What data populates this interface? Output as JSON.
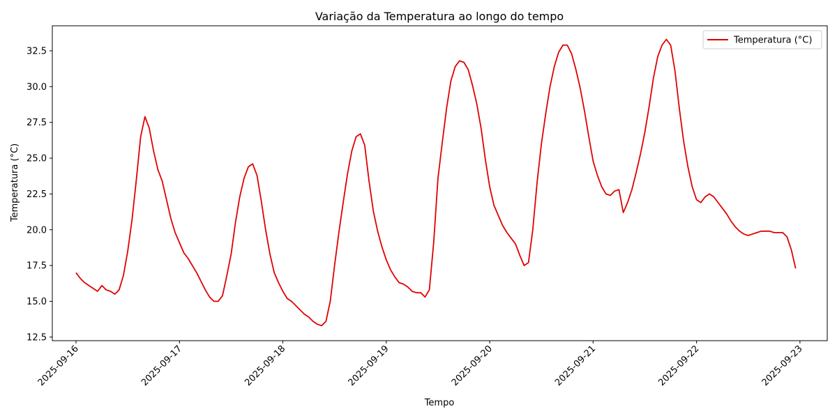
{
  "chart_data": {
    "type": "line",
    "title": "Variação da Temperatura ao longo do tempo",
    "xlabel": "Tempo",
    "ylabel": "Temperatura (°C)",
    "legend_position": "top-right",
    "grid": false,
    "x_range": [
      "2025-09-15T18:30",
      "2025-09-23T06:20"
    ],
    "ylim": [
      12.25,
      34.25
    ],
    "x_ticks": [
      "2025-09-16",
      "2025-09-17",
      "2025-09-18",
      "2025-09-19",
      "2025-09-20",
      "2025-09-21",
      "2025-09-22",
      "2025-09-23"
    ],
    "y_ticks": [
      "12.5",
      "15.0",
      "17.5",
      "20.0",
      "22.5",
      "25.0",
      "27.5",
      "30.0",
      "32.5"
    ],
    "series": [
      {
        "name": "Temperatura (°C)",
        "color": "#e00000",
        "x": [
          "2025-09-16T00:00",
          "2025-09-16T01:00",
          "2025-09-16T02:00",
          "2025-09-16T03:00",
          "2025-09-16T04:00",
          "2025-09-16T05:00",
          "2025-09-16T06:00",
          "2025-09-16T07:00",
          "2025-09-16T08:00",
          "2025-09-16T09:00",
          "2025-09-16T10:00",
          "2025-09-16T11:00",
          "2025-09-16T12:00",
          "2025-09-16T13:00",
          "2025-09-16T14:00",
          "2025-09-16T15:00",
          "2025-09-16T16:00",
          "2025-09-16T17:00",
          "2025-09-16T18:00",
          "2025-09-16T19:00",
          "2025-09-16T20:00",
          "2025-09-16T21:00",
          "2025-09-16T22:00",
          "2025-09-16T23:00",
          "2025-09-17T00:00",
          "2025-09-17T01:00",
          "2025-09-17T02:00",
          "2025-09-17T03:00",
          "2025-09-17T04:00",
          "2025-09-17T05:00",
          "2025-09-17T06:00",
          "2025-09-17T07:00",
          "2025-09-17T08:00",
          "2025-09-17T09:00",
          "2025-09-17T10:00",
          "2025-09-17T11:00",
          "2025-09-17T12:00",
          "2025-09-17T13:00",
          "2025-09-17T14:00",
          "2025-09-17T15:00",
          "2025-09-17T16:00",
          "2025-09-17T17:00",
          "2025-09-17T18:00",
          "2025-09-17T19:00",
          "2025-09-17T20:00",
          "2025-09-17T21:00",
          "2025-09-17T22:00",
          "2025-09-17T23:00",
          "2025-09-18T00:00",
          "2025-09-18T01:00",
          "2025-09-18T02:00",
          "2025-09-18T03:00",
          "2025-09-18T04:00",
          "2025-09-18T05:00",
          "2025-09-18T06:00",
          "2025-09-18T07:00",
          "2025-09-18T08:00",
          "2025-09-18T09:00",
          "2025-09-18T10:00",
          "2025-09-18T11:00",
          "2025-09-18T12:00",
          "2025-09-18T13:00",
          "2025-09-18T14:00",
          "2025-09-18T15:00",
          "2025-09-18T16:00",
          "2025-09-18T17:00",
          "2025-09-18T18:00",
          "2025-09-18T19:00",
          "2025-09-18T20:00",
          "2025-09-18T21:00",
          "2025-09-18T22:00",
          "2025-09-18T23:00",
          "2025-09-19T00:00",
          "2025-09-19T01:00",
          "2025-09-19T02:00",
          "2025-09-19T03:00",
          "2025-09-19T04:00",
          "2025-09-19T05:00",
          "2025-09-19T06:00",
          "2025-09-19T07:00",
          "2025-09-19T08:00",
          "2025-09-19T09:00",
          "2025-09-19T10:00",
          "2025-09-19T11:00",
          "2025-09-19T12:00",
          "2025-09-19T13:00",
          "2025-09-19T14:00",
          "2025-09-19T15:00",
          "2025-09-19T16:00",
          "2025-09-19T17:00",
          "2025-09-19T18:00",
          "2025-09-19T19:00",
          "2025-09-19T20:00",
          "2025-09-19T21:00",
          "2025-09-19T22:00",
          "2025-09-19T23:00",
          "2025-09-20T00:00",
          "2025-09-20T01:00",
          "2025-09-20T02:00",
          "2025-09-20T03:00",
          "2025-09-20T04:00",
          "2025-09-20T05:00",
          "2025-09-20T06:00",
          "2025-09-20T07:00",
          "2025-09-20T08:00",
          "2025-09-20T09:00",
          "2025-09-20T10:00",
          "2025-09-20T11:00",
          "2025-09-20T12:00",
          "2025-09-20T13:00",
          "2025-09-20T14:00",
          "2025-09-20T15:00",
          "2025-09-20T16:00",
          "2025-09-20T17:00",
          "2025-09-20T18:00",
          "2025-09-20T19:00",
          "2025-09-20T20:00",
          "2025-09-20T21:00",
          "2025-09-20T22:00",
          "2025-09-20T23:00",
          "2025-09-21T00:00",
          "2025-09-21T01:00",
          "2025-09-21T02:00",
          "2025-09-21T03:00",
          "2025-09-21T04:00",
          "2025-09-21T05:00",
          "2025-09-21T06:00",
          "2025-09-21T07:00",
          "2025-09-21T08:00",
          "2025-09-21T09:00",
          "2025-09-21T10:00",
          "2025-09-21T11:00",
          "2025-09-21T12:00",
          "2025-09-21T13:00",
          "2025-09-21T14:00",
          "2025-09-21T15:00",
          "2025-09-21T16:00",
          "2025-09-21T17:00",
          "2025-09-21T18:00",
          "2025-09-21T19:00",
          "2025-09-21T20:00",
          "2025-09-21T21:00",
          "2025-09-21T22:00",
          "2025-09-21T23:00",
          "2025-09-22T00:00",
          "2025-09-22T01:00",
          "2025-09-22T02:00",
          "2025-09-22T03:00",
          "2025-09-22T04:00",
          "2025-09-22T05:00",
          "2025-09-22T06:00",
          "2025-09-22T07:00",
          "2025-09-22T08:00",
          "2025-09-22T09:00",
          "2025-09-22T10:00",
          "2025-09-22T11:00",
          "2025-09-22T12:00",
          "2025-09-22T13:00",
          "2025-09-22T14:00",
          "2025-09-22T15:00",
          "2025-09-22T16:00",
          "2025-09-22T17:00",
          "2025-09-22T18:00",
          "2025-09-22T19:00",
          "2025-09-22T20:00",
          "2025-09-22T21:00",
          "2025-09-22T22:00",
          "2025-09-22T23:00"
        ],
        "values": [
          17.0,
          16.6,
          16.3,
          16.1,
          15.9,
          15.7,
          16.1,
          15.8,
          15.7,
          15.5,
          15.8,
          16.8,
          18.5,
          20.7,
          23.5,
          26.5,
          27.9,
          27.1,
          25.5,
          24.2,
          23.4,
          22.1,
          20.8,
          19.8,
          19.1,
          18.4,
          18.0,
          17.5,
          17.0,
          16.4,
          15.8,
          15.3,
          15.0,
          15.0,
          15.4,
          16.8,
          18.3,
          20.5,
          22.3,
          23.6,
          24.4,
          24.6,
          23.8,
          22.0,
          20.0,
          18.3,
          17.0,
          16.3,
          15.7,
          15.2,
          15.0,
          14.7,
          14.4,
          14.1,
          13.9,
          13.6,
          13.4,
          13.3,
          13.6,
          15.0,
          17.5,
          19.8,
          21.9,
          23.9,
          25.5,
          26.5,
          26.7,
          25.9,
          23.4,
          21.3,
          19.9,
          18.8,
          17.9,
          17.2,
          16.7,
          16.3,
          16.2,
          16.0,
          15.7,
          15.6,
          15.6,
          15.3,
          15.8,
          19.1,
          23.6,
          26.1,
          28.5,
          30.4,
          31.4,
          31.8,
          31.7,
          31.2,
          30.1,
          28.8,
          27.1,
          24.9,
          23.0,
          21.7,
          21.0,
          20.3,
          19.8,
          19.4,
          19.0,
          18.2,
          17.5,
          17.7,
          20.0,
          23.3,
          26.0,
          28.1,
          30.0,
          31.4,
          32.4,
          32.9,
          32.9,
          32.3,
          31.2,
          29.9,
          28.3,
          26.5,
          24.8,
          23.8,
          23.0,
          22.5,
          22.4,
          22.7,
          22.8,
          21.2,
          21.9,
          22.8,
          24.0,
          25.3,
          26.8,
          28.6,
          30.6,
          32.1,
          32.9,
          33.3,
          32.9,
          31.1,
          28.5,
          26.2,
          24.4,
          23.0,
          22.1,
          21.9,
          22.3,
          22.5,
          22.3,
          21.9,
          21.5,
          21.1,
          20.6,
          20.2,
          19.9,
          19.7,
          19.6,
          19.7,
          19.8,
          19.9,
          19.9,
          19.9,
          19.8,
          19.8,
          19.8,
          19.5,
          18.6,
          17.3
        ]
      }
    ]
  }
}
